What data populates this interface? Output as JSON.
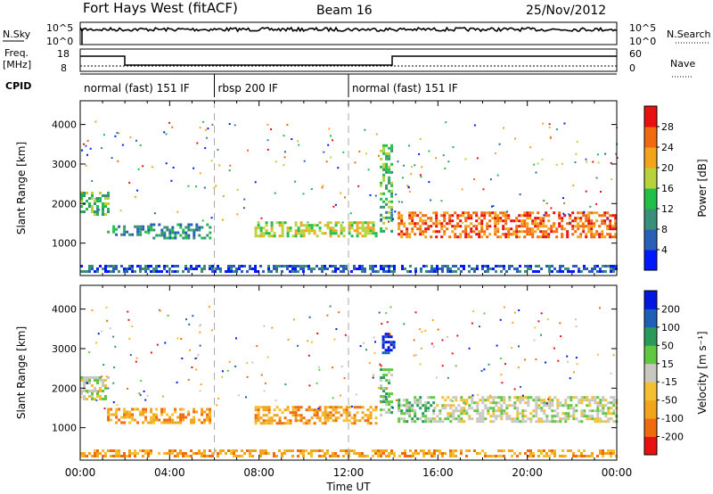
{
  "header": {
    "station": "Fort Hays West (fitACF)",
    "beam": "Beam 16",
    "date": "25/Nov/2012"
  },
  "panels": {
    "nsky": {
      "label": "N.Sky",
      "tick_top": "10^5",
      "tick_bottom": "10^0",
      "right_label": "N.Search",
      "right_tick_top": "10^5",
      "right_tick_bottom": "10^0"
    },
    "freq": {
      "label": "Freq.",
      "unit": "[MHz]",
      "tick_top": "18",
      "tick_bottom": "8",
      "right_label": "Nave",
      "right_tick_top": "60",
      "right_tick_bottom": "0"
    },
    "cpid": {
      "label": "CPID",
      "segments": [
        {
          "label": "normal (fast) 151 IF",
          "start": 0,
          "end": 6
        },
        {
          "label": "rbsp 200 IF",
          "start": 6,
          "end": 12
        },
        {
          "label": "normal (fast) 151 IF",
          "start": 12,
          "end": 24
        }
      ]
    }
  },
  "chart_data": [
    {
      "type": "heatmap",
      "name": "power",
      "ylabel": "Slant Range [km]",
      "yticks": [
        "1000",
        "2000",
        "3000",
        "4000"
      ],
      "ytick_values": [
        1000,
        2000,
        3000,
        4000
      ],
      "ylim": [
        180,
        4600
      ],
      "xlim": [
        0,
        24
      ],
      "colorbar": {
        "label": "Power [dB]",
        "ticks": [
          "4",
          "8",
          "12",
          "16",
          "20",
          "24",
          "28"
        ],
        "colors": [
          "#0018ff",
          "#2a5fb8",
          "#3a8f7a",
          "#1fbf4a",
          "#b8d23a",
          "#f2a51a",
          "#f06a10",
          "#e81010"
        ]
      },
      "bands": [
        {
          "x0": 0.0,
          "x1": 1.2,
          "y0": 1750,
          "y1": 2300,
          "level": 3
        },
        {
          "x0": 1.2,
          "x1": 3.0,
          "y0": 1200,
          "y1": 1450,
          "level": 2
        },
        {
          "x0": 3.0,
          "x1": 5.8,
          "y0": 1150,
          "y1": 1500,
          "level": 2
        },
        {
          "x0": 7.8,
          "x1": 13.3,
          "y0": 1150,
          "y1": 1550,
          "level": 4
        },
        {
          "x0": 13.4,
          "x1": 13.9,
          "y0": 1300,
          "y1": 3500,
          "level": 3
        },
        {
          "x0": 14.2,
          "x1": 24.0,
          "y0": 1150,
          "y1": 1800,
          "level": 6
        },
        {
          "x0": 0.0,
          "x1": 24.0,
          "y0": 250,
          "y1": 450,
          "level": 1
        }
      ]
    },
    {
      "type": "heatmap",
      "name": "velocity",
      "ylabel": "Slant Range [km]",
      "yticks": [
        "1000",
        "2000",
        "3000",
        "4000"
      ],
      "ytick_values": [
        1000,
        2000,
        3000,
        4000
      ],
      "ylim": [
        180,
        4600
      ],
      "xlim": [
        0,
        24
      ],
      "xlabel": "Time UT",
      "xticks": [
        "00:00",
        "04:00",
        "08:00",
        "12:00",
        "16:00",
        "20:00",
        "00:00"
      ],
      "xtick_values": [
        0,
        4,
        8,
        12,
        16,
        20,
        24
      ],
      "colorbar": {
        "label": "Velocity [m s⁻¹]",
        "ticks": [
          "-200",
          "-100",
          "-50",
          "-15",
          "15",
          "50",
          "100",
          "200"
        ],
        "colors": [
          "#e81010",
          "#f06a10",
          "#f2a51a",
          "#f5c030",
          "#c8c8c0",
          "#60c840",
          "#2a9a5a",
          "#1f5fb8",
          "#0018e0"
        ]
      },
      "bands": [
        {
          "x0": 0.0,
          "x1": 1.2,
          "y0": 1750,
          "y1": 2300,
          "level": 4
        },
        {
          "x0": 1.2,
          "x1": 5.8,
          "y0": 1150,
          "y1": 1500,
          "level": 2
        },
        {
          "x0": 7.8,
          "x1": 13.3,
          "y0": 1100,
          "y1": 1550,
          "level": 2
        },
        {
          "x0": 13.4,
          "x1": 13.9,
          "y0": 1300,
          "y1": 2500,
          "level": 5
        },
        {
          "x0": 13.5,
          "x1": 14.0,
          "y0": 2900,
          "y1": 3400,
          "level": 8
        },
        {
          "x0": 14.2,
          "x1": 15.8,
          "y0": 1150,
          "y1": 1800,
          "level": 5
        },
        {
          "x0": 15.8,
          "x1": 24.0,
          "y0": 1150,
          "y1": 1800,
          "level": 4
        },
        {
          "x0": 0.0,
          "x1": 24.0,
          "y0": 250,
          "y1": 450,
          "level": 2
        }
      ]
    }
  ]
}
